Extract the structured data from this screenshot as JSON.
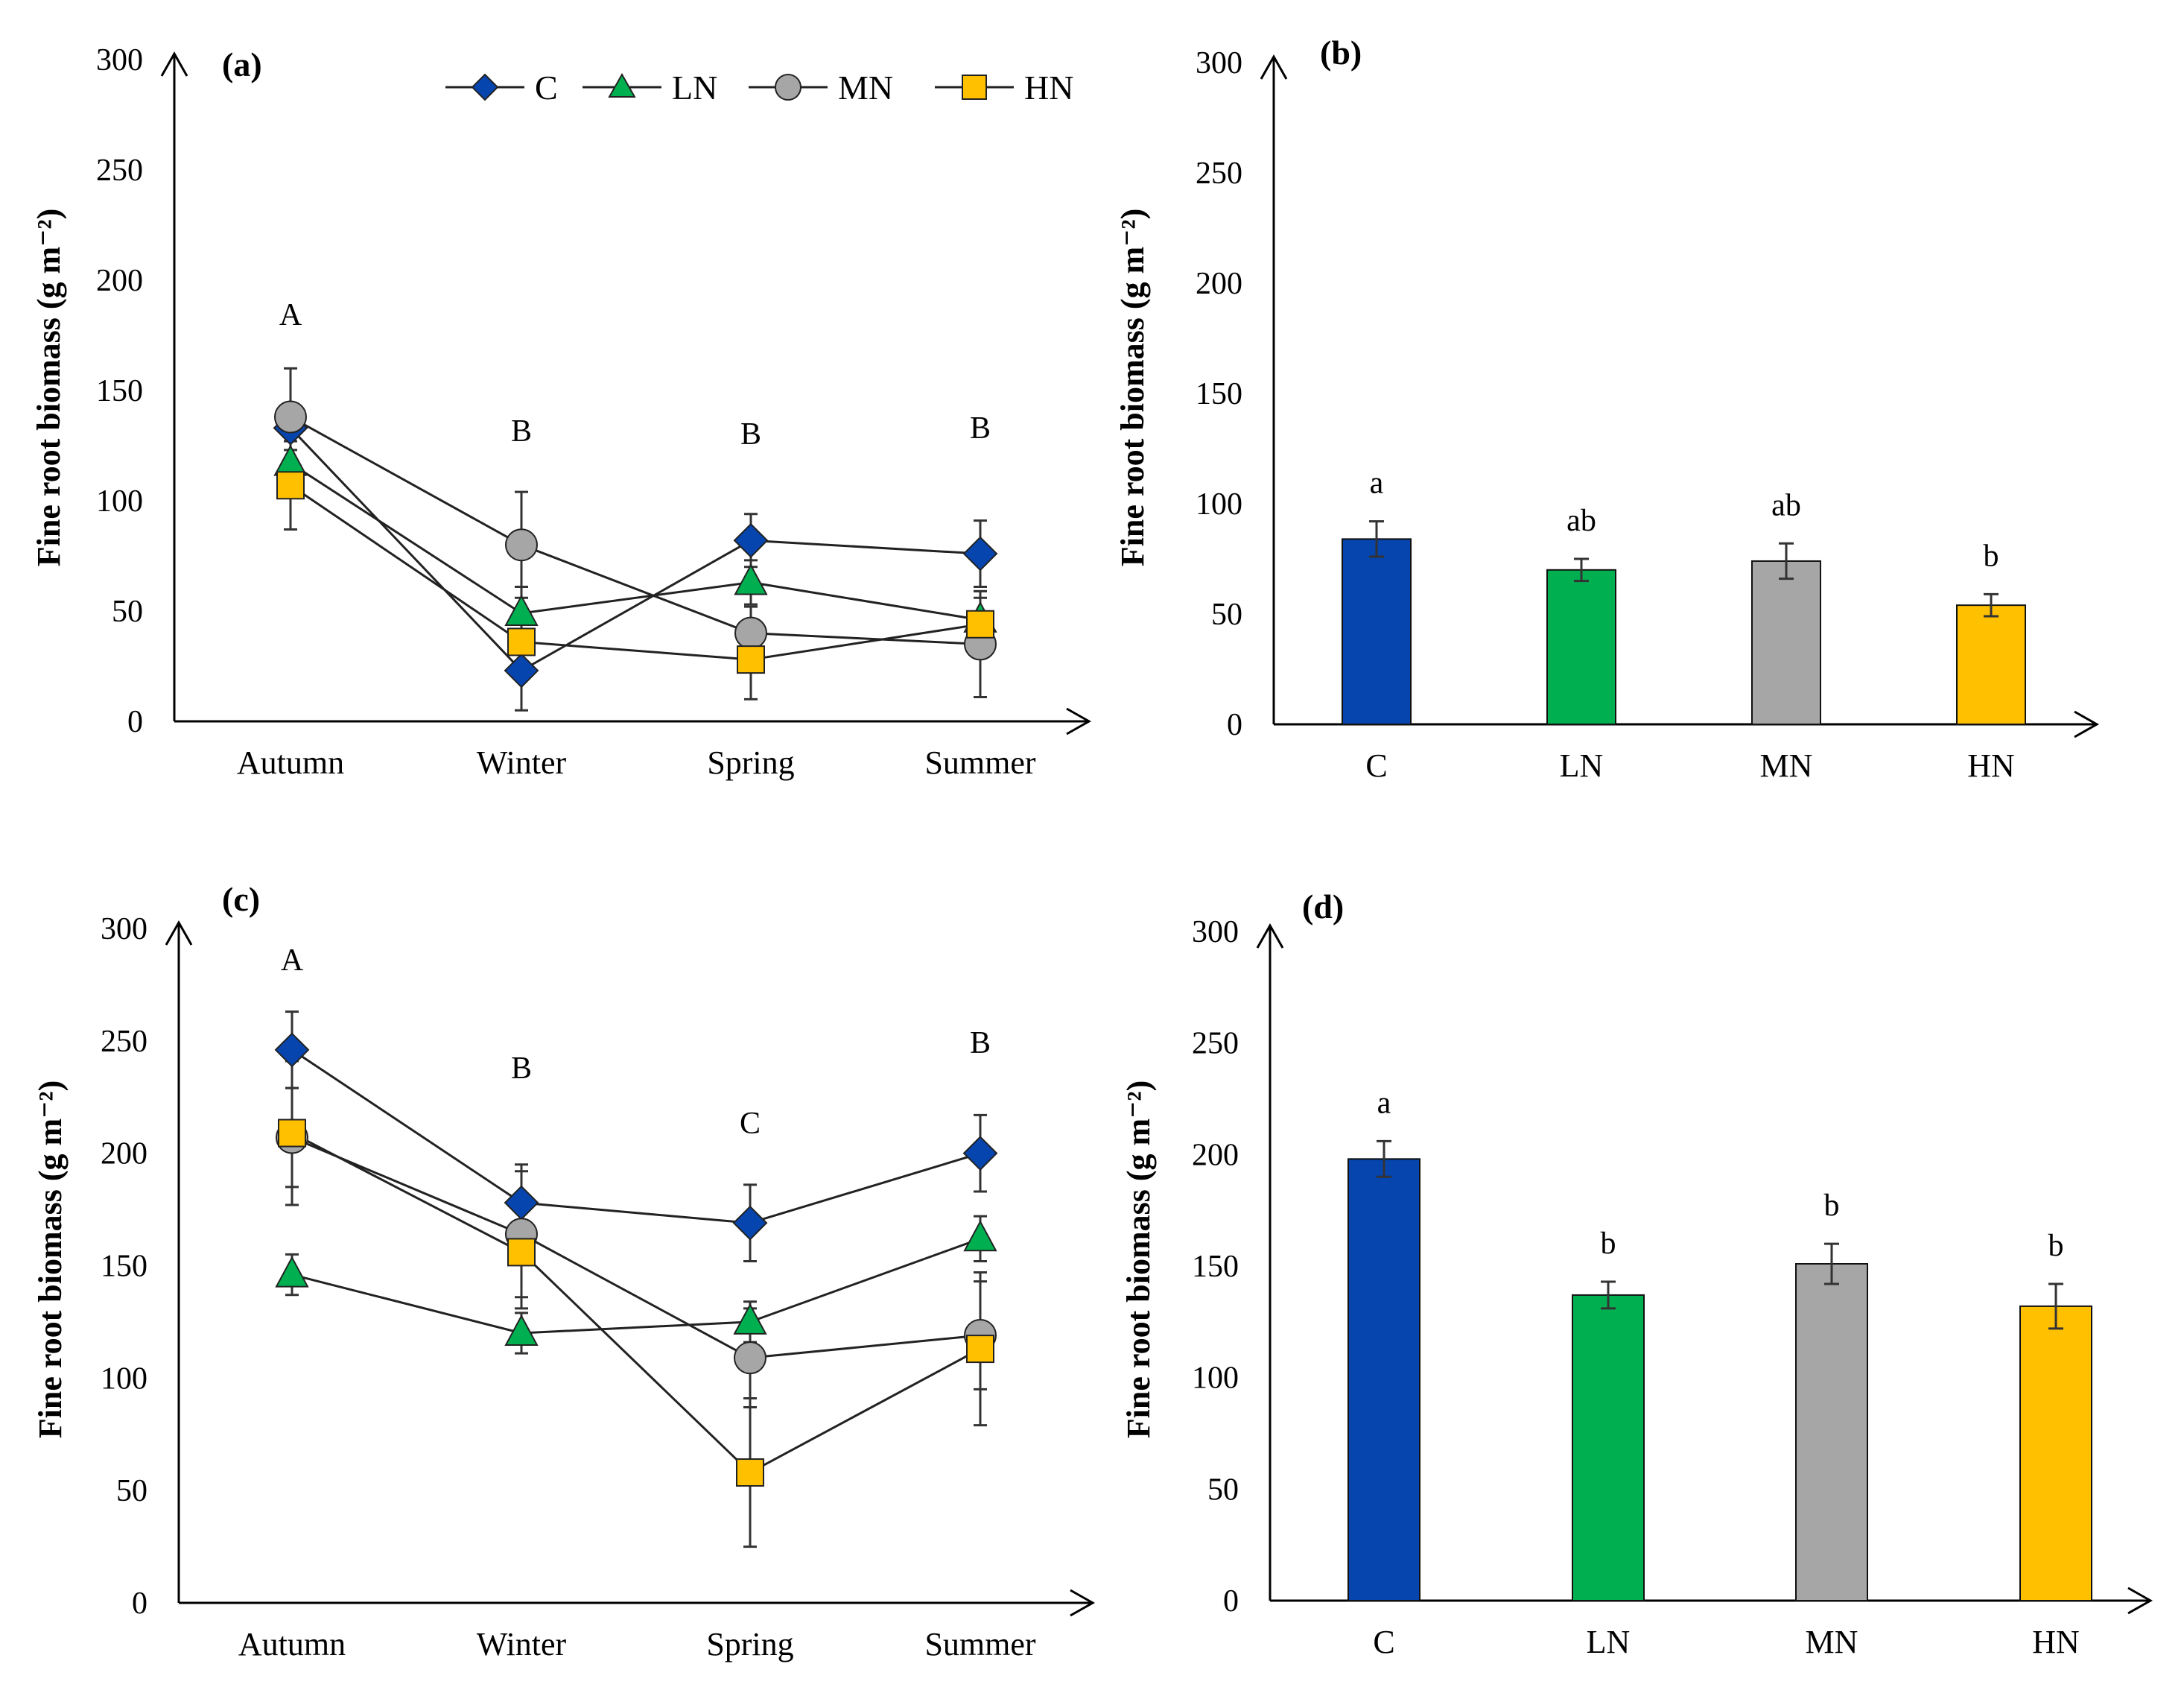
{
  "legend": [
    {
      "name": "C",
      "color": "#0645ad",
      "marker": "diamond"
    },
    {
      "name": "LN",
      "color": "#00b050",
      "marker": "triangle"
    },
    {
      "name": "MN",
      "color": "#a6a6a6",
      "marker": "circle"
    },
    {
      "name": "HN",
      "color": "#ffc000",
      "marker": "square"
    }
  ],
  "chart_data": [
    {
      "panel": "(a)",
      "type": "line",
      "ylabel": "Fine root biomass (g m⁻²)",
      "ylim": [
        0,
        300
      ],
      "yticks": [
        0,
        50,
        100,
        150,
        200,
        250,
        300
      ],
      "categories": [
        "Autumn",
        "Winter",
        "Spring",
        "Summer"
      ],
      "letters": [
        "A",
        "B",
        "B",
        "B"
      ],
      "series": [
        {
          "name": "C",
          "values": [
            133,
            23,
            82,
            76
          ],
          "errors": [
            10,
            18,
            12,
            15
          ]
        },
        {
          "name": "LN",
          "values": [
            117,
            49,
            63,
            46
          ],
          "errors": [
            12,
            12,
            10,
            10
          ]
        },
        {
          "name": "MN",
          "values": [
            138,
            80,
            40,
            35
          ],
          "errors": [
            22,
            24,
            12,
            24
          ]
        },
        {
          "name": "HN",
          "values": [
            107,
            36,
            28,
            44
          ],
          "errors": [
            20,
            14,
            18,
            15
          ]
        }
      ]
    },
    {
      "panel": "(b)",
      "type": "bar",
      "ylabel": "Fine root biomass (g m⁻²)",
      "ylim": [
        0,
        300
      ],
      "yticks": [
        0,
        50,
        100,
        150,
        200,
        250,
        300
      ],
      "categories": [
        "C",
        "LN",
        "MN",
        "HN"
      ],
      "values": [
        84,
        70,
        74,
        54
      ],
      "errors": [
        8,
        5,
        8,
        5
      ],
      "letters": [
        "a",
        "ab",
        "ab",
        "b"
      ],
      "colors": [
        "#0645ad",
        "#00b050",
        "#a6a6a6",
        "#ffc000"
      ]
    },
    {
      "panel": "(c)",
      "type": "line",
      "ylabel": "Fine root biomass (g m⁻²)",
      "ylim": [
        0,
        300
      ],
      "yticks": [
        0,
        50,
        100,
        150,
        200,
        250,
        300
      ],
      "categories": [
        "Autumn",
        "Winter",
        "Spring",
        "Summer"
      ],
      "letters": [
        "A",
        "B",
        "C",
        "B"
      ],
      "series": [
        {
          "name": "C",
          "values": [
            246,
            178,
            169,
            200
          ],
          "errors": [
            17,
            17,
            17,
            17
          ]
        },
        {
          "name": "LN",
          "values": [
            146,
            120,
            125,
            162
          ],
          "errors": [
            9,
            9,
            9,
            10
          ]
        },
        {
          "name": "MN",
          "values": [
            207,
            164,
            109,
            119
          ],
          "errors": [
            22,
            28,
            22,
            24
          ]
        },
        {
          "name": "HN",
          "values": [
            209,
            156,
            58,
            113
          ],
          "errors": [
            32,
            25,
            33,
            34
          ]
        }
      ]
    },
    {
      "panel": "(d)",
      "type": "bar",
      "ylabel": "Fine root biomass (g m⁻²)",
      "ylim": [
        0,
        300
      ],
      "yticks": [
        0,
        50,
        100,
        150,
        200,
        250,
        300
      ],
      "categories": [
        "C",
        "LN",
        "MN",
        "HN"
      ],
      "values": [
        198,
        137,
        151,
        132
      ],
      "errors": [
        8,
        6,
        9,
        10
      ],
      "letters": [
        "a",
        "b",
        "b",
        "b"
      ],
      "colors": [
        "#0645ad",
        "#00b050",
        "#a6a6a6",
        "#ffc000"
      ]
    }
  ]
}
